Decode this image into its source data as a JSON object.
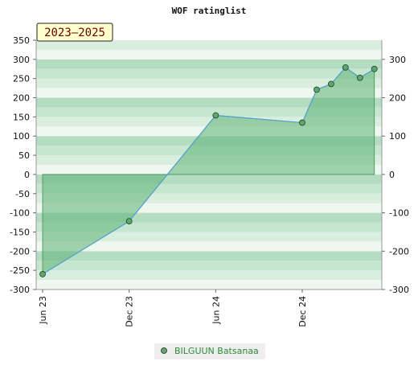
{
  "chart_data": {
    "type": "area",
    "title": "WOF ratinglist",
    "badge": "2023–2025",
    "x_ticks": [
      "Jun 23",
      "Dec 23",
      "Jun 24",
      "Dec 24"
    ],
    "x": [
      "2023-06",
      "2023-12",
      "2024-06",
      "2024-12",
      "2025-01",
      "2025-02",
      "2025-03",
      "2025-04",
      "2025-05"
    ],
    "series": [
      {
        "name": "BILGUUN Batsanaa",
        "values": [
          -260,
          -122,
          154,
          135,
          221,
          236,
          279,
          252,
          275
        ]
      }
    ],
    "ylim": [
      -300,
      350
    ],
    "y_ticks_left": [
      -300,
      -250,
      -200,
      -150,
      -100,
      -50,
      0,
      50,
      100,
      150,
      200,
      250,
      300,
      350
    ],
    "y_ticks_right": [
      -300,
      -200,
      -100,
      0,
      100,
      200,
      300
    ],
    "grid": "alternating horizontal bands",
    "legend": "bottom-center",
    "colors": {
      "line": "#4f9fd1",
      "fill": "#5fb274",
      "marker": "#5fa86d",
      "band_dark": "#b4dcc0",
      "band_light": "#eef7f0"
    }
  }
}
